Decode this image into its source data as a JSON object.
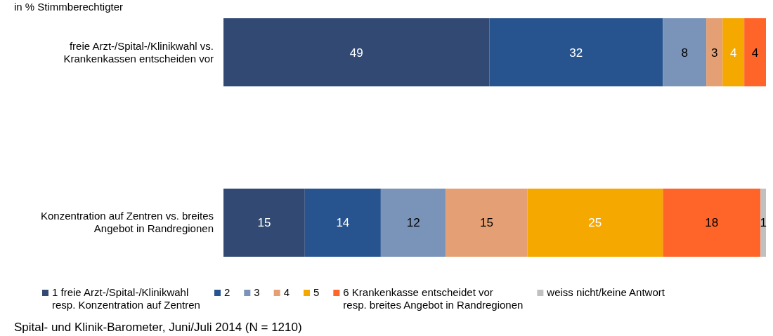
{
  "chart_data": {
    "type": "bar",
    "orientation": "horizontal",
    "stacked": true,
    "subtitle": "in % Stimmberechtigter",
    "categories": [
      "freie Arzt-/Spital-/Klinikwahl vs.\nKrankenkassen entscheiden vor",
      "Konzentration auf Zentren vs. breites\nAngebot in Randregionen"
    ],
    "xlim": [
      0,
      100
    ],
    "series": [
      {
        "name": "1 freie Arzt-/Spital-/Klinikwahl\nresp. Konzentration auf Zentren",
        "color": "#324a73",
        "values": [
          49,
          15
        ],
        "value_labels": [
          "49",
          "15"
        ]
      },
      {
        "name": "2",
        "color": "#27548f",
        "values": [
          32,
          14
        ],
        "value_labels": [
          "32",
          "14"
        ]
      },
      {
        "name": "3",
        "color": "#7a93b8",
        "values": [
          8,
          12
        ],
        "value_labels": [
          "8",
          "12"
        ]
      },
      {
        "name": "4",
        "color": "#e4a074",
        "values": [
          3,
          15
        ],
        "value_labels": [
          "3",
          "15"
        ]
      },
      {
        "name": "5",
        "color": "#f5a800",
        "values": [
          4,
          25
        ],
        "value_labels": [
          "4",
          "25"
        ]
      },
      {
        "name": "6 Krankenkasse entscheidet vor\nresp. breites Angebot in Randregionen",
        "color": "#ff6529",
        "values": [
          4,
          18
        ],
        "value_labels": [
          "4",
          "18"
        ]
      },
      {
        "name": "weiss nicht/keine Antwort",
        "color": "#c0c0c0",
        "values": [
          0,
          1
        ],
        "value_labels": [
          null,
          "1"
        ]
      }
    ],
    "legend": "bottom",
    "annotations": [
      "Spital- und Klinik-Barometer, Juni/Juli 2014 (N = 1210)"
    ]
  }
}
